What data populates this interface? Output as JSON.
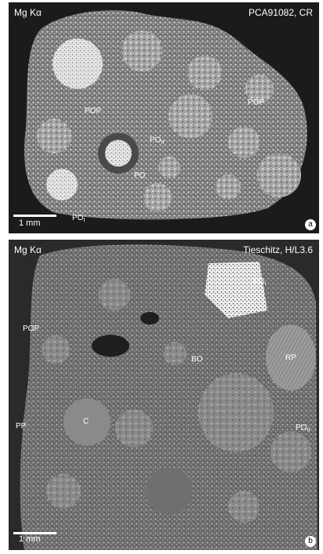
{
  "panels": [
    {
      "element": "Mg Kα",
      "specimen": "PCA91082, CR",
      "scale_label": "1 mm",
      "panel_letter": "a",
      "labels": {
        "pop_left": "POP",
        "pop_right": "POP",
        "po_ii": "PO",
        "po_ii_sub": "II",
        "po_center": "PO",
        "po_i": "PO",
        "po_i_sub": "I"
      }
    },
    {
      "element": "Mg Kα",
      "specimen": "Tieschitz, H/L3.6",
      "scale_label": "1 mm",
      "panel_letter": "b",
      "labels": {
        "po_i": "PO",
        "po_i_sub": "I",
        "pop": "POP",
        "rp": "RP",
        "bo": "BO",
        "c": "C",
        "pp": "PP",
        "po_ii": "PO",
        "po_ii_sub": "II"
      }
    }
  ],
  "colors": {
    "background": "#ffffff",
    "panel_a": "#1b1b1b",
    "panel_b": "#2a2a2a",
    "text": "#ffffff"
  }
}
